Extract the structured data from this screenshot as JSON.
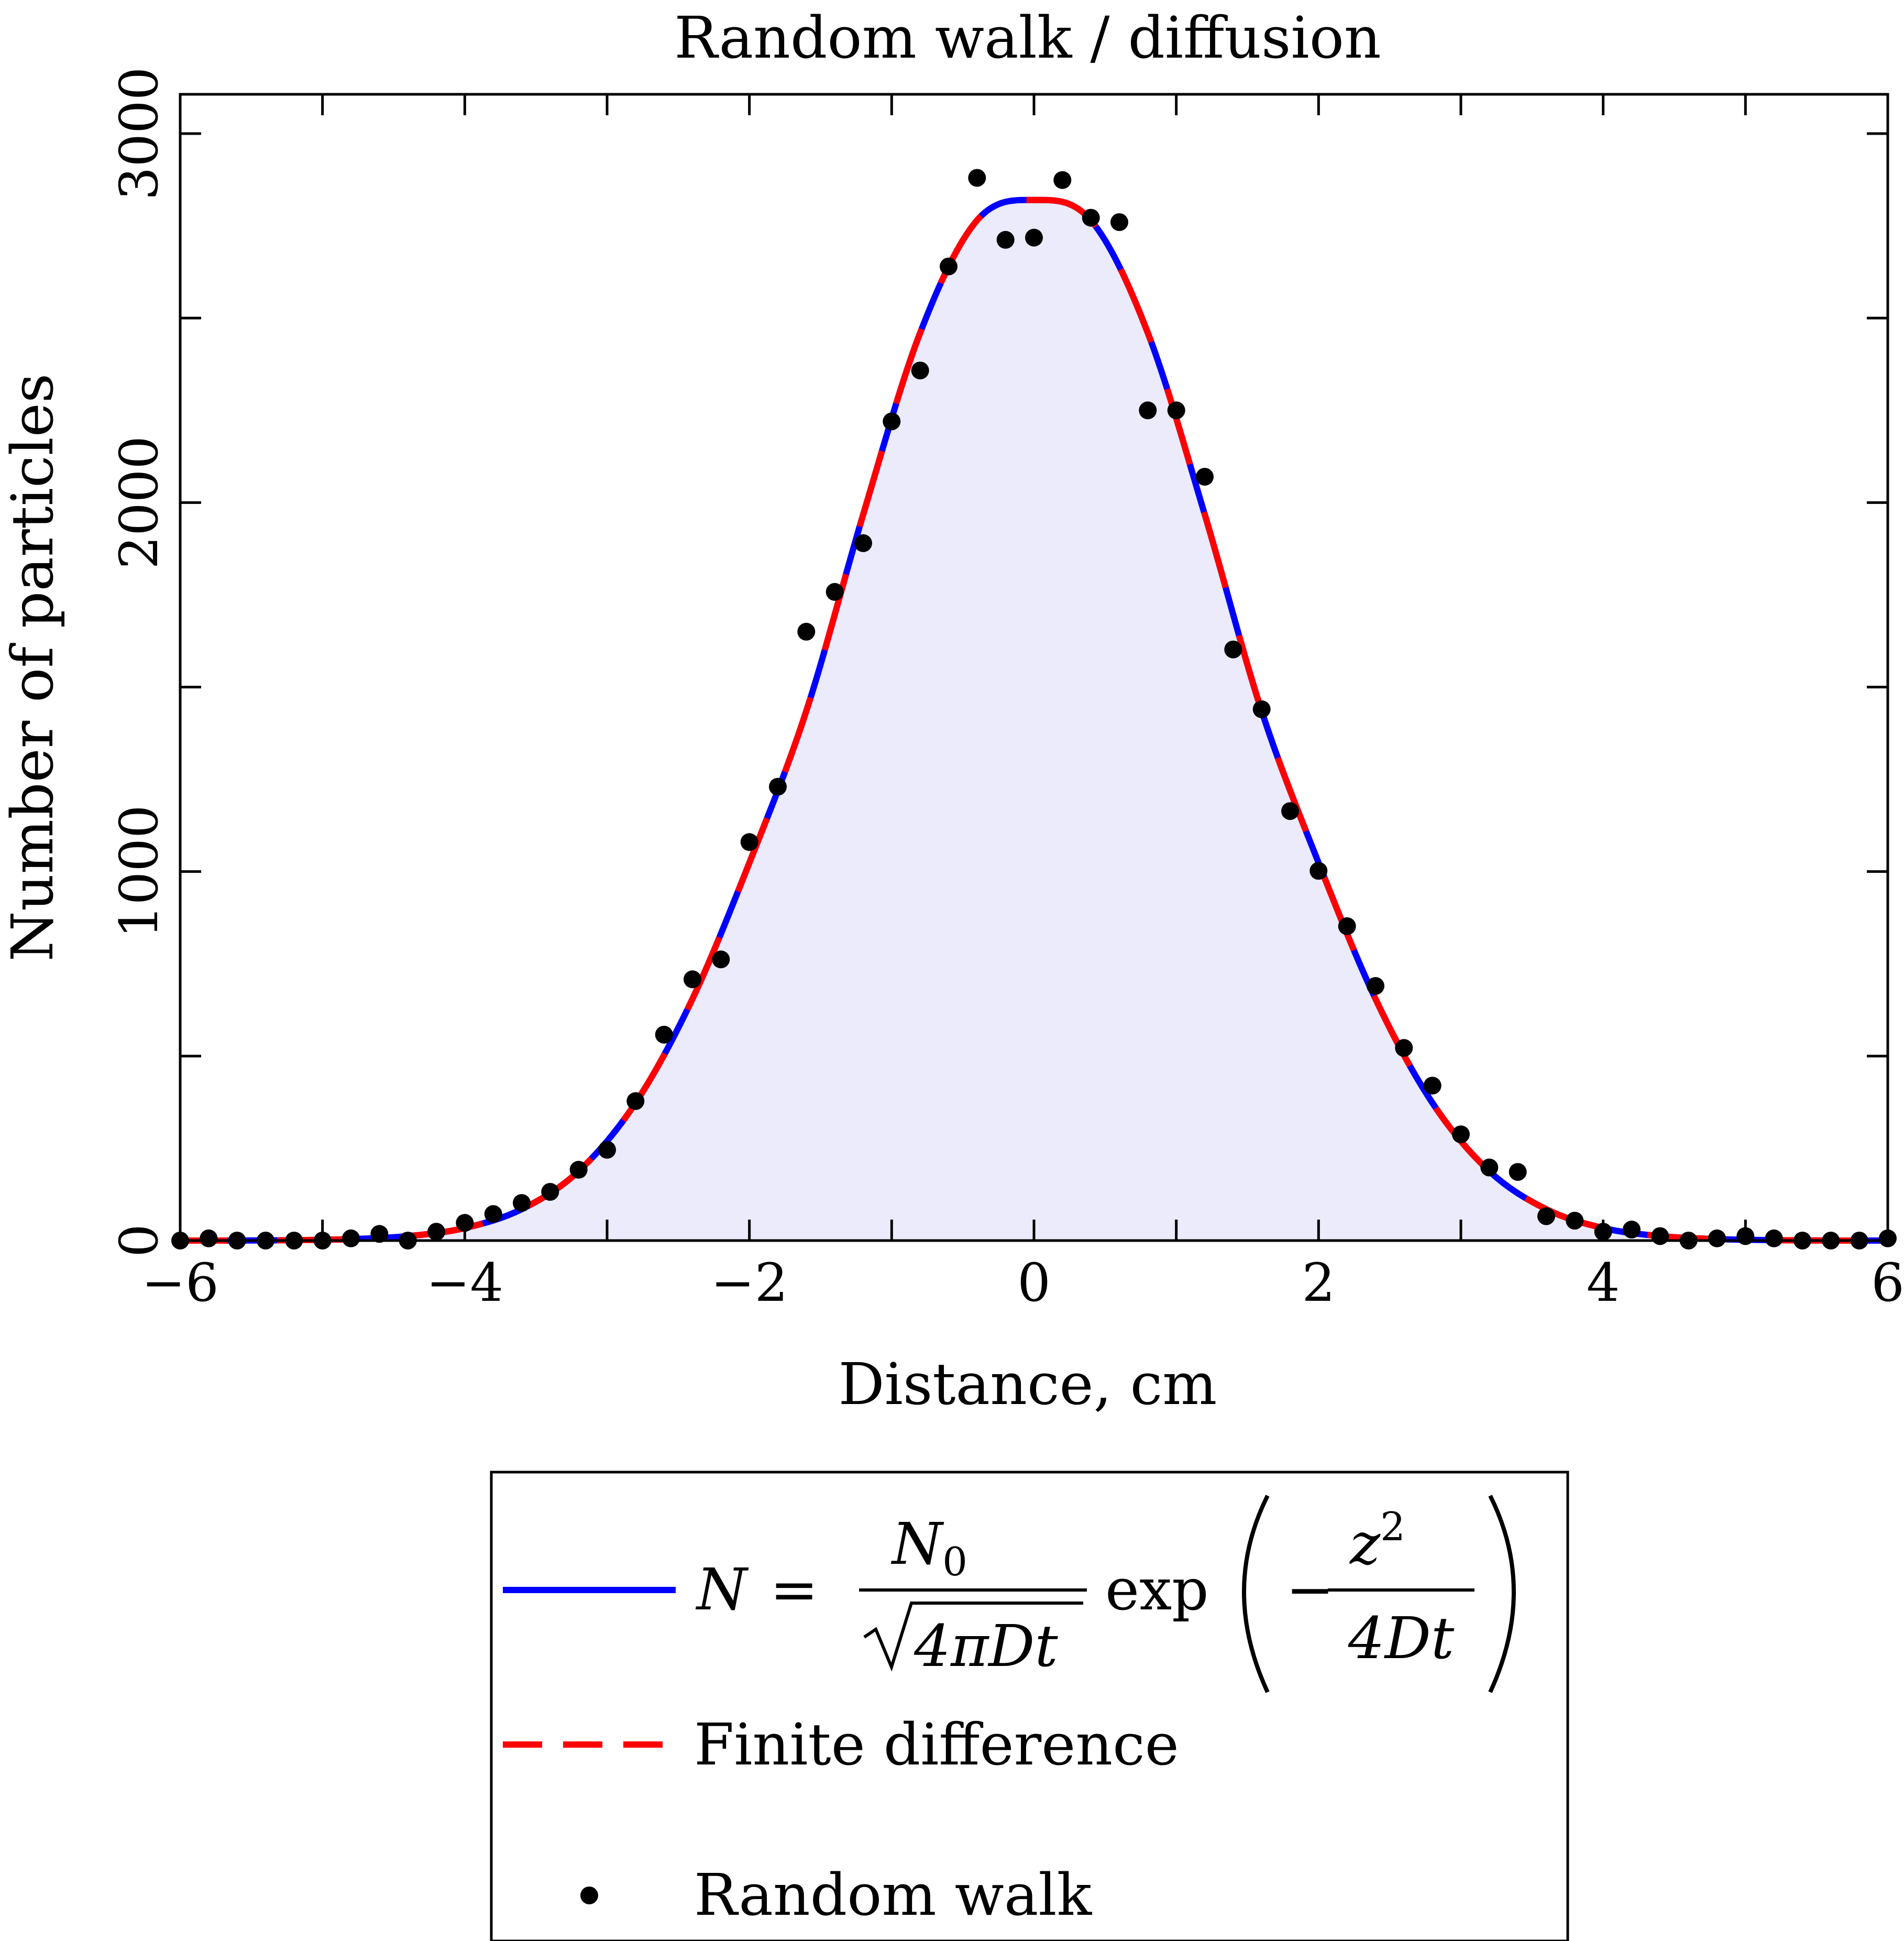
{
  "chart_data": {
    "type": "line",
    "title": "Random walk / diffusion",
    "xlabel": "Distance, cm",
    "ylabel": "Number of particles",
    "xlim": [
      -6,
      6
    ],
    "ylim": [
      0,
      3000
    ],
    "x_ticks": [
      -6,
      -4,
      -2,
      0,
      2,
      4,
      6
    ],
    "x_tick_labels": [
      "−6",
      "−4",
      "−2",
      "0",
      "2",
      "4",
      "6"
    ],
    "y_ticks": [
      0,
      1000,
      2000,
      3000
    ],
    "y_tick_labels": [
      "0",
      "1000",
      "2000",
      "3000"
    ],
    "y_minor_ticks": [
      500,
      1500,
      2500
    ],
    "grid": false,
    "legend_position": "below",
    "colors": {
      "analytic": "#0000ff",
      "finite_difference": "#ff0000",
      "random_walk": "#000000",
      "fill": "#ebebfb"
    },
    "series": [
      {
        "name": "N = N0 / √(4πDt) exp(−z² / 4Dt)",
        "kind": "line",
        "style": "solid",
        "x": [
          -6.0,
          -5.6,
          -5.2,
          -4.8,
          -4.4,
          -4.0,
          -3.6,
          -3.2,
          -2.8,
          -2.4,
          -2.0,
          -1.6,
          -1.2,
          -0.8,
          -0.4,
          0.0,
          0.4,
          0.8,
          1.2,
          1.6,
          2.0,
          2.4,
          2.8,
          3.2,
          3.6,
          4.0,
          4.4,
          4.8,
          5.2,
          5.6,
          6.0
        ],
        "y": [
          0,
          0,
          1,
          4,
          12,
          34,
          85,
          188,
          373,
          655,
          1024,
          1435,
          1968,
          2460,
          2765,
          2820,
          2765,
          2460,
          1968,
          1435,
          1024,
          655,
          373,
          188,
          85,
          34,
          12,
          4,
          1,
          0,
          0
        ]
      },
      {
        "name": "Finite difference",
        "kind": "line",
        "style": "dashed",
        "x": [
          -6.0,
          -5.6,
          -5.2,
          -4.8,
          -4.4,
          -4.0,
          -3.6,
          -3.2,
          -2.8,
          -2.4,
          -2.0,
          -1.6,
          -1.2,
          -0.8,
          -0.4,
          0.0,
          0.4,
          0.8,
          1.2,
          1.6,
          2.0,
          2.4,
          2.8,
          3.2,
          3.6,
          4.0,
          4.4,
          4.8,
          5.2,
          5.6,
          6.0
        ],
        "y": [
          0,
          0,
          1,
          4,
          12,
          34,
          85,
          188,
          373,
          655,
          1024,
          1435,
          1968,
          2460,
          2765,
          2820,
          2765,
          2460,
          1968,
          1435,
          1024,
          655,
          373,
          188,
          85,
          34,
          12,
          4,
          1,
          0,
          0
        ]
      },
      {
        "name": "Random walk",
        "kind": "scatter",
        "x": [
          -6.0,
          -5.8,
          -5.6,
          -5.4,
          -5.2,
          -5.0,
          -4.8,
          -4.6,
          -4.4,
          -4.2,
          -4.0,
          -3.8,
          -3.6,
          -3.4,
          -3.2,
          -3.0,
          -2.8,
          -2.6,
          -2.4,
          -2.2,
          -2.0,
          -1.8,
          -1.6,
          -1.4,
          -1.2,
          -1.0,
          -0.8,
          -0.6,
          -0.4,
          -0.2,
          0.0,
          0.2,
          0.4,
          0.6,
          0.8,
          1.0,
          1.2,
          1.4,
          1.6,
          1.8,
          2.0,
          2.2,
          2.4,
          2.6,
          2.8,
          3.0,
          3.2,
          3.4,
          3.6,
          3.8,
          4.0,
          4.2,
          4.4,
          4.6,
          4.8,
          5.0,
          5.2,
          5.4,
          5.6,
          5.8,
          6.0
        ],
        "y": [
          0,
          6,
          0,
          0,
          0,
          0,
          6,
          18,
          0,
          24,
          48,
          72,
          102,
          132,
          192,
          246,
          378,
          558,
          708,
          762,
          1080,
          1230,
          1650,
          1758,
          1890,
          2220,
          2358,
          2640,
          2880,
          2712,
          2718,
          2874,
          2772,
          2760,
          2250,
          2250,
          2070,
          1602,
          1440,
          1164,
          1002,
          852,
          690,
          522,
          420,
          288,
          198,
          186,
          66,
          54,
          24,
          30,
          12,
          0,
          6,
          12,
          6,
          0,
          0,
          0,
          6
        ]
      }
    ]
  },
  "legend": {
    "formula_N": "N",
    "formula_eq": "=",
    "formula_numerator": "N",
    "formula_numerator_sub": "0",
    "formula_denominator": "4πDt",
    "formula_exp": "exp",
    "formula_minus": "−",
    "formula_z": "z",
    "formula_z_sup": "2",
    "formula_4Dt": "4Dt",
    "finite_difference_label": "Finite difference",
    "random_walk_label": "Random walk"
  }
}
